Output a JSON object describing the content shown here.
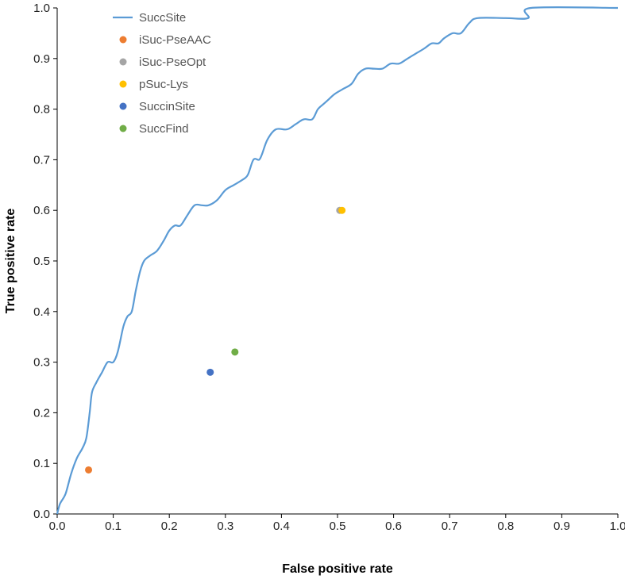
{
  "chart_data": {
    "type": "scatter",
    "title": "",
    "xlabel": "False positive rate",
    "ylabel": "True positive rate",
    "xlim": [
      0.0,
      1.0
    ],
    "ylim": [
      0.0,
      1.0
    ],
    "x_ticks": [
      "0.0",
      "0.1",
      "0.2",
      "0.3",
      "0.4",
      "0.5",
      "0.6",
      "0.7",
      "0.8",
      "0.9",
      "1.0"
    ],
    "y_ticks": [
      "0.0",
      "0.1",
      "0.2",
      "0.3",
      "0.4",
      "0.5",
      "0.6",
      "0.7",
      "0.8",
      "0.9",
      "1.0"
    ],
    "grid": false,
    "legend_position": "top-left",
    "series": [
      {
        "name": "SuccSite",
        "kind": "line",
        "color": "#5b9bd5",
        "points": [
          [
            0.0,
            0.0
          ],
          [
            0.005,
            0.02
          ],
          [
            0.015,
            0.04
          ],
          [
            0.025,
            0.08
          ],
          [
            0.035,
            0.11
          ],
          [
            0.045,
            0.13
          ],
          [
            0.052,
            0.15
          ],
          [
            0.058,
            0.2
          ],
          [
            0.062,
            0.24
          ],
          [
            0.07,
            0.26
          ],
          [
            0.08,
            0.28
          ],
          [
            0.09,
            0.3
          ],
          [
            0.1,
            0.3
          ],
          [
            0.108,
            0.32
          ],
          [
            0.118,
            0.37
          ],
          [
            0.125,
            0.39
          ],
          [
            0.133,
            0.4
          ],
          [
            0.14,
            0.44
          ],
          [
            0.148,
            0.48
          ],
          [
            0.155,
            0.5
          ],
          [
            0.165,
            0.51
          ],
          [
            0.178,
            0.52
          ],
          [
            0.19,
            0.54
          ],
          [
            0.2,
            0.56
          ],
          [
            0.21,
            0.57
          ],
          [
            0.22,
            0.57
          ],
          [
            0.232,
            0.59
          ],
          [
            0.245,
            0.61
          ],
          [
            0.258,
            0.61
          ],
          [
            0.27,
            0.61
          ],
          [
            0.285,
            0.62
          ],
          [
            0.3,
            0.64
          ],
          [
            0.315,
            0.65
          ],
          [
            0.33,
            0.66
          ],
          [
            0.34,
            0.67
          ],
          [
            0.35,
            0.7
          ],
          [
            0.36,
            0.7
          ],
          [
            0.365,
            0.71
          ],
          [
            0.375,
            0.74
          ],
          [
            0.39,
            0.76
          ],
          [
            0.41,
            0.76
          ],
          [
            0.425,
            0.77
          ],
          [
            0.44,
            0.78
          ],
          [
            0.455,
            0.78
          ],
          [
            0.465,
            0.8
          ],
          [
            0.475,
            0.81
          ],
          [
            0.485,
            0.82
          ],
          [
            0.495,
            0.83
          ],
          [
            0.51,
            0.84
          ],
          [
            0.525,
            0.85
          ],
          [
            0.537,
            0.87
          ],
          [
            0.55,
            0.88
          ],
          [
            0.565,
            0.88
          ],
          [
            0.58,
            0.88
          ],
          [
            0.595,
            0.89
          ],
          [
            0.61,
            0.89
          ],
          [
            0.625,
            0.9
          ],
          [
            0.64,
            0.91
          ],
          [
            0.655,
            0.92
          ],
          [
            0.668,
            0.93
          ],
          [
            0.68,
            0.93
          ],
          [
            0.69,
            0.94
          ],
          [
            0.705,
            0.95
          ],
          [
            0.72,
            0.95
          ],
          [
            0.735,
            0.97
          ],
          [
            0.75,
            0.98
          ],
          [
            0.8,
            0.98
          ],
          [
            0.84,
            0.98
          ],
          [
            0.845,
            1.0
          ],
          [
            1.0,
            1.0
          ]
        ]
      },
      {
        "name": "iSuc-PseAAC",
        "kind": "point",
        "color": "#ed7d31",
        "points": [
          [
            0.056,
            0.087
          ]
        ]
      },
      {
        "name": "iSuc-PseOpt",
        "kind": "point",
        "color": "#a5a5a5",
        "points": [
          [
            0.504,
            0.6
          ]
        ]
      },
      {
        "name": "pSuc-Lys",
        "kind": "point",
        "color": "#ffc000",
        "points": [
          [
            0.508,
            0.6
          ]
        ]
      },
      {
        "name": "SuccinSite",
        "kind": "point",
        "color": "#4472c4",
        "points": [
          [
            0.273,
            0.28
          ]
        ]
      },
      {
        "name": "SuccFind",
        "kind": "point",
        "color": "#70ad47",
        "points": [
          [
            0.317,
            0.32
          ]
        ]
      }
    ]
  }
}
